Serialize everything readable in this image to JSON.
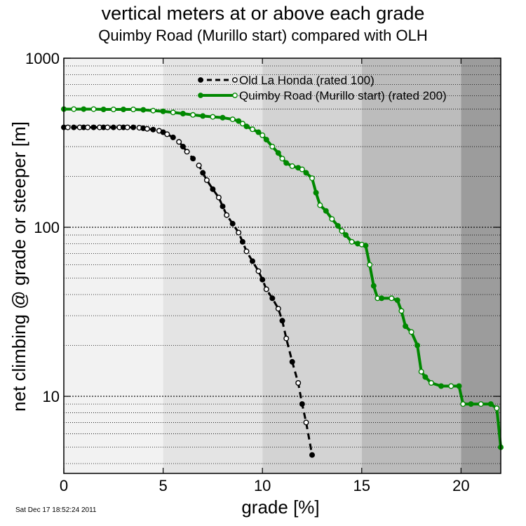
{
  "chart_data": {
    "type": "line",
    "title": "vertical meters at or above each grade",
    "subtitle": "Quimby Road (Murillo start) compared with OLH",
    "xlabel": "grade [%]",
    "ylabel": "net climbing @ grade or steeper [m]",
    "xlim": [
      0,
      22
    ],
    "ylim": [
      3.5,
      1000
    ],
    "yscale": "log",
    "x_ticks": [
      "0",
      "5",
      "10",
      "15",
      "20"
    ],
    "y_ticks": [
      "10",
      "100",
      "1000"
    ],
    "grid": true,
    "legend_position": "top-center",
    "background_bands": [
      {
        "from": 0,
        "to": 5,
        "color": "#f2f2f2"
      },
      {
        "from": 5,
        "to": 10,
        "color": "#e4e4e4"
      },
      {
        "from": 10,
        "to": 15,
        "color": "#d3d3d3"
      },
      {
        "from": 15,
        "to": 20,
        "color": "#bcbcbc"
      },
      {
        "from": 20,
        "to": 22,
        "color": "#9c9c9c"
      }
    ],
    "series": [
      {
        "name": "Old La Honda (rated 100)",
        "color": "#000000",
        "style": "dashed",
        "x": [
          0,
          0.2,
          0.5,
          0.8,
          1.0,
          1.2,
          1.5,
          1.8,
          2.0,
          2.2,
          2.5,
          2.8,
          3.0,
          3.2,
          3.5,
          3.8,
          4.0,
          4.2,
          4.5,
          4.8,
          5.0,
          5.2,
          5.5,
          5.8,
          6.0,
          6.2,
          6.5,
          6.8,
          7.0,
          7.2,
          7.5,
          7.8,
          8.0,
          8.2,
          8.5,
          8.8,
          9.0,
          9.2,
          9.5,
          9.8,
          10.0,
          10.2,
          10.5,
          10.8,
          11.0,
          11.2,
          11.5,
          11.8,
          12.0,
          12.2,
          12.5
        ],
        "y": [
          390,
          390,
          390,
          390,
          390,
          390,
          390,
          390,
          390,
          390,
          390,
          390,
          390,
          390,
          390,
          388,
          385,
          382,
          378,
          372,
          365,
          355,
          340,
          320,
          300,
          280,
          255,
          232,
          210,
          190,
          168,
          150,
          133,
          118,
          105,
          93,
          82,
          72,
          63,
          55,
          49,
          43,
          38,
          33,
          28,
          22,
          16,
          12,
          9,
          7,
          4.5
        ]
      },
      {
        "name": "Quimby Road (Murillo start) (rated 200)",
        "color": "#008800",
        "style": "solid",
        "x": [
          0,
          0.5,
          1.0,
          1.5,
          2.0,
          2.5,
          3.0,
          3.5,
          4.0,
          4.5,
          5.0,
          5.5,
          6.0,
          6.5,
          7.0,
          7.5,
          8.0,
          8.5,
          8.8,
          9.0,
          9.2,
          9.5,
          9.8,
          10.0,
          10.2,
          10.5,
          10.8,
          11.0,
          11.2,
          11.5,
          11.8,
          12.0,
          12.2,
          12.5,
          12.7,
          12.9,
          13.2,
          13.5,
          13.8,
          14.0,
          14.2,
          14.5,
          14.8,
          15.0,
          15.2,
          15.4,
          15.6,
          15.8,
          16.0,
          16.5,
          16.8,
          17.0,
          17.2,
          17.5,
          17.8,
          18.0,
          18.2,
          18.5,
          19.0,
          19.5,
          19.9,
          20.1,
          20.5,
          21.0,
          21.5,
          21.8,
          22.0
        ],
        "y": [
          500,
          500,
          500,
          500,
          498,
          498,
          498,
          498,
          495,
          490,
          485,
          478,
          470,
          462,
          455,
          450,
          445,
          435,
          425,
          410,
          395,
          380,
          365,
          350,
          330,
          300,
          275,
          255,
          240,
          230,
          225,
          220,
          210,
          195,
          160,
          135,
          125,
          112,
          102,
          95,
          90,
          82,
          80,
          79,
          78,
          60,
          45,
          38,
          38,
          38,
          37,
          32,
          26,
          24,
          20,
          14,
          13,
          12,
          11.5,
          11.5,
          11.5,
          9,
          9,
          9,
          9,
          8.5,
          5
        ]
      }
    ]
  },
  "footer": {
    "timestamp": "Sat Dec 17 18:52:24 2011"
  }
}
